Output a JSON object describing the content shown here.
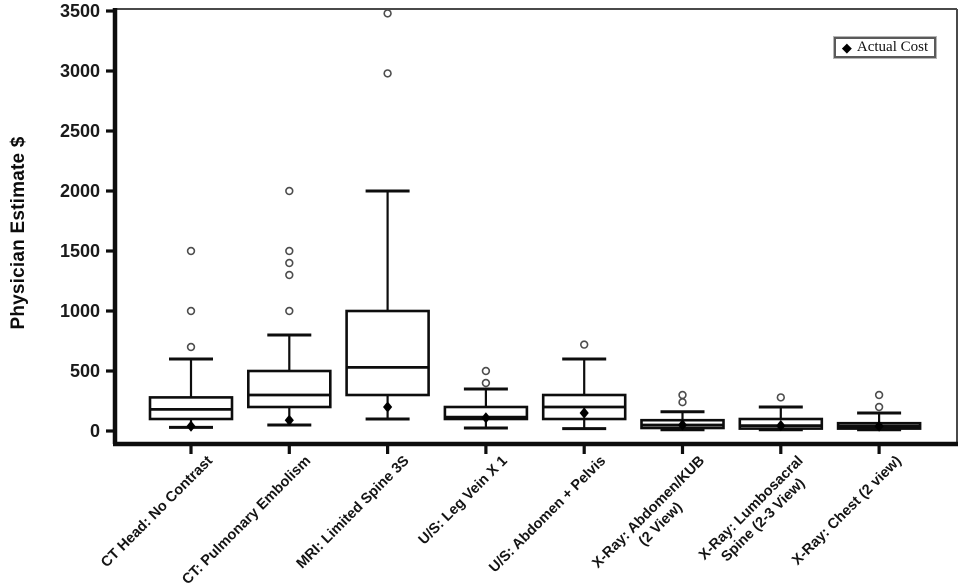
{
  "chart_data": {
    "type": "box",
    "title": "",
    "xlabel": "",
    "ylabel": "Physician Estimate $",
    "ylim": [
      0,
      3500
    ],
    "yticks": [
      0,
      500,
      1000,
      1500,
      2000,
      2500,
      3000,
      3500
    ],
    "grid": false,
    "legend": {
      "label": "Actual Cost",
      "marker": "diamond",
      "marker_glyph": "◆",
      "position": "top-right"
    },
    "categories": [
      "CT Head: No Contrast",
      "CT: Pulmonary Embolism",
      "MRI: Limited Spine 3S",
      "U/S: Leg Vein X 1",
      "U/S: Abdomen + Pelvis",
      "X-Ray: Abdomen/KUB (2 View)",
      "X-Ray: Lumbosacral Spine (2-3 View)",
      "X-Ray: Chest (2 view)"
    ],
    "series": [
      {
        "label_lines": [
          "CT Head: No Contrast"
        ],
        "whisker_low": 30,
        "q1": 100,
        "median": 180,
        "q3": 280,
        "whisker_high": 600,
        "outliers": [
          700,
          1000,
          1500
        ],
        "actual_cost": 40
      },
      {
        "label_lines": [
          "CT: Pulmonary Embolism"
        ],
        "whisker_low": 50,
        "q1": 200,
        "median": 300,
        "q3": 500,
        "whisker_high": 800,
        "outliers": [
          1000,
          1300,
          1400,
          1500,
          2000
        ],
        "actual_cost": 90
      },
      {
        "label_lines": [
          "MRI: Limited Spine 3S"
        ],
        "whisker_low": 100,
        "q1": 300,
        "median": 530,
        "q3": 1000,
        "whisker_high": 2000,
        "outliers": [
          2980,
          3480
        ],
        "actual_cost": 200
      },
      {
        "label_lines": [
          "U/S: Leg Vein X 1"
        ],
        "whisker_low": 25,
        "q1": 100,
        "median": 115,
        "q3": 200,
        "whisker_high": 350,
        "outliers": [
          400,
          500
        ],
        "actual_cost": 110
      },
      {
        "label_lines": [
          "U/S: Abdomen + Pelvis"
        ],
        "whisker_low": 20,
        "q1": 100,
        "median": 200,
        "q3": 300,
        "whisker_high": 600,
        "outliers": [
          720
        ],
        "actual_cost": 150
      },
      {
        "label_lines": [
          "X-Ray: Abdomen/KUB",
          "(2 View)"
        ],
        "whisker_low": 10,
        "q1": 25,
        "median": 50,
        "q3": 90,
        "whisker_high": 160,
        "outliers": [
          240,
          300
        ],
        "actual_cost": 50
      },
      {
        "label_lines": [
          "X-Ray: Lumbosacral",
          "Spine (2-3 View)"
        ],
        "whisker_low": 10,
        "q1": 20,
        "median": 45,
        "q3": 100,
        "whisker_high": 200,
        "outliers": [
          280
        ],
        "actual_cost": 45
      },
      {
        "label_lines": [
          "X-Ray: Chest (2 view)"
        ],
        "whisker_low": 10,
        "q1": 20,
        "median": 40,
        "q3": 65,
        "whisker_high": 150,
        "outliers": [
          200,
          300
        ],
        "actual_cost": 40
      }
    ],
    "colors": {
      "line": "#0d0d0d",
      "box_fill": "#ffffff",
      "outlier_stroke": "#4d4d4d",
      "actual_cost_marker": "#000000",
      "plot_border": "#4a4a4a",
      "background": "#ffffff"
    }
  }
}
